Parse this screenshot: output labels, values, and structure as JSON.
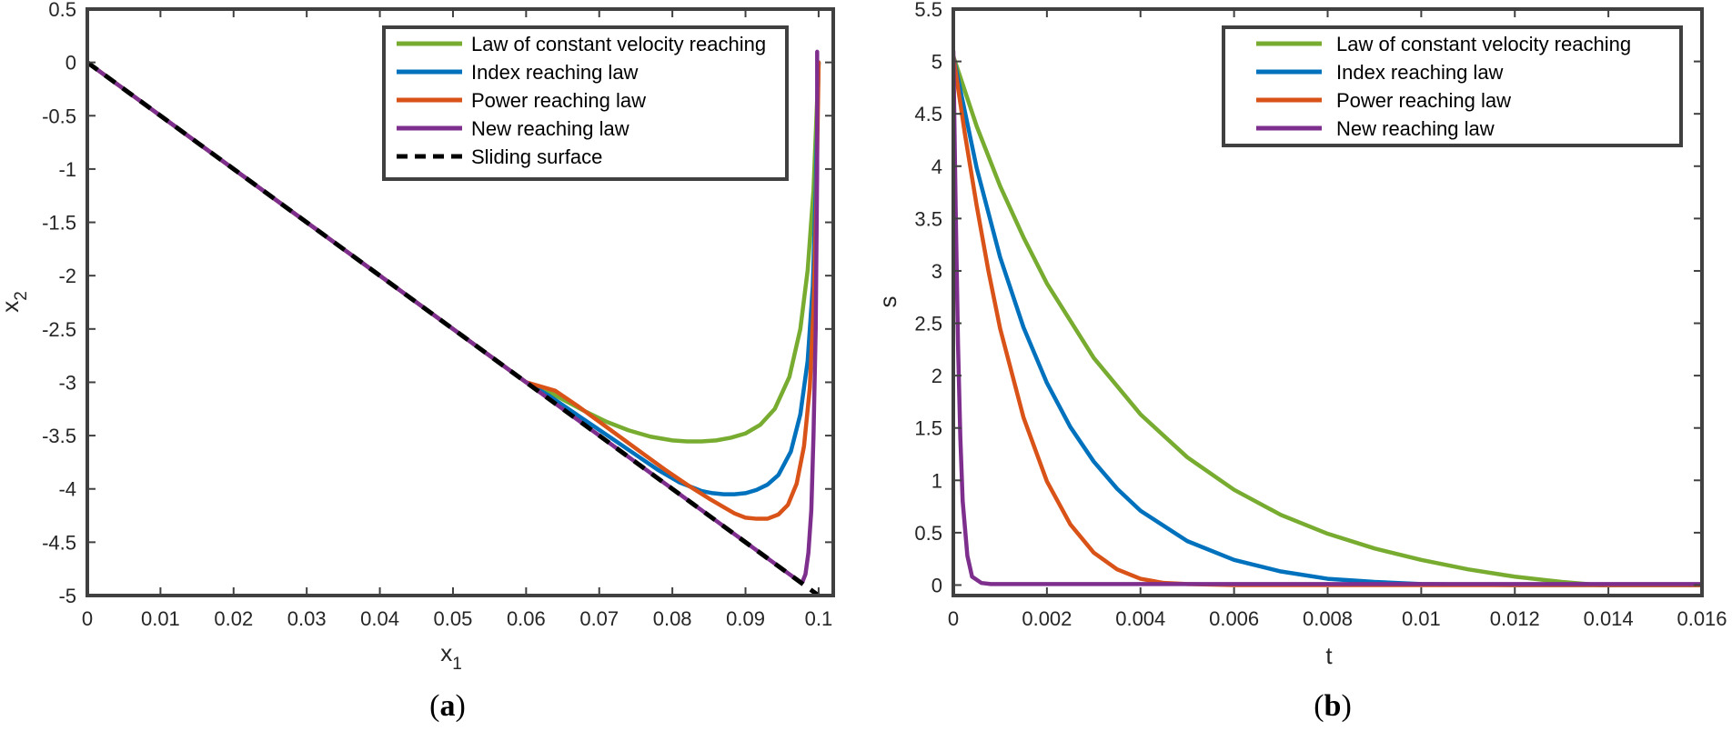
{
  "colors": {
    "green": "#77AC30",
    "blue": "#0072BD",
    "orange": "#D95319",
    "purple": "#7E2F8E",
    "black": "#000000",
    "axis": "#404040"
  },
  "chart_data": [
    {
      "type": "line",
      "caption_open": "(",
      "caption": "a",
      "caption_close": ")",
      "title": "",
      "xlabel": "x",
      "xlabel_sub": "1",
      "ylabel": "x",
      "ylabel_sub": "2",
      "xlim": [
        0,
        0.102
      ],
      "ylim": [
        -5,
        0.5
      ],
      "xticks": [
        0,
        0.01,
        0.02,
        0.03,
        0.04,
        0.05,
        0.06,
        0.07,
        0.08,
        0.09,
        0.1
      ],
      "xtick_labels": [
        "0",
        "0.01",
        "0.02",
        "0.03",
        "0.04",
        "0.05",
        "0.06",
        "0.07",
        "0.08",
        "0.09",
        "0.1"
      ],
      "yticks": [
        0.5,
        0,
        -0.5,
        -1,
        -1.5,
        -2,
        -2.5,
        -3,
        -3.5,
        -4,
        -4.5,
        -5
      ],
      "ytick_labels": [
        "0.5",
        "0",
        "-0.5",
        "-1",
        "-1.5",
        "-2",
        "-2.5",
        "-3",
        "-3.5",
        "-4",
        "-4.5",
        "-5"
      ],
      "grid": false,
      "legend_position": "top-right",
      "series": [
        {
          "name": "Law of constant velocity reaching",
          "color": "green",
          "x": [
            0.1,
            0.0993,
            0.0985,
            0.0975,
            0.096,
            0.094,
            0.092,
            0.09,
            0.088,
            0.086,
            0.084,
            0.082,
            0.08,
            0.077,
            0.074,
            0.071,
            0.068,
            0.065,
            0.062,
            0.06,
            0.05,
            0.04,
            0.03,
            0.02,
            0.01,
            0
          ],
          "y": [
            0,
            -1.2,
            -1.95,
            -2.5,
            -2.95,
            -3.25,
            -3.4,
            -3.48,
            -3.52,
            -3.545,
            -3.555,
            -3.555,
            -3.545,
            -3.51,
            -3.45,
            -3.37,
            -3.27,
            -3.16,
            -3.05,
            -3.0,
            -2.5,
            -2.0,
            -1.5,
            -1.0,
            -0.5,
            0
          ]
        },
        {
          "name": "Index reaching law",
          "color": "blue",
          "x": [
            0.1,
            0.0996,
            0.0992,
            0.0985,
            0.0975,
            0.0962,
            0.0945,
            0.093,
            0.0915,
            0.09,
            0.0885,
            0.087,
            0.0855,
            0.084,
            0.081,
            0.078,
            0.075,
            0.072,
            0.069,
            0.066,
            0.063,
            0.06,
            0.05,
            0.04,
            0.03,
            0.02,
            0.01,
            0
          ],
          "y": [
            0,
            -1.2,
            -2.1,
            -2.8,
            -3.3,
            -3.65,
            -3.87,
            -3.96,
            -4.01,
            -4.04,
            -4.05,
            -4.05,
            -4.04,
            -4.02,
            -3.94,
            -3.82,
            -3.68,
            -3.54,
            -3.4,
            -3.26,
            -3.12,
            -3.0,
            -2.5,
            -2.0,
            -1.5,
            -1.0,
            -0.5,
            0
          ]
        },
        {
          "name": "Power reaching law",
          "color": "orange",
          "x": [
            0.1,
            0.0997,
            0.0993,
            0.0988,
            0.098,
            0.097,
            0.0958,
            0.0945,
            0.093,
            0.0915,
            0.09,
            0.0885,
            0.087,
            0.085,
            0.082,
            0.079,
            0.076,
            0.073,
            0.07,
            0.067,
            0.064,
            0.06,
            0.05,
            0.04,
            0.03,
            0.02,
            0.01,
            0
          ],
          "y": [
            0,
            -1.3,
            -2.3,
            -3.05,
            -3.6,
            -3.95,
            -4.15,
            -4.24,
            -4.28,
            -4.28,
            -4.27,
            -4.23,
            -4.17,
            -4.09,
            -3.96,
            -3.82,
            -3.67,
            -3.52,
            -3.37,
            -3.22,
            -3.08,
            -3.0,
            -2.5,
            -2.0,
            -1.5,
            -1.0,
            -0.5,
            0
          ]
        },
        {
          "name": "New reaching law",
          "color": "purple",
          "x": [
            0.0998,
            0.0998,
            0.0996,
            0.0993,
            0.099,
            0.0986,
            0.0982,
            0.0978,
            0.0974,
            0.095,
            0.09,
            0.08,
            0.07,
            0.06,
            0.05,
            0.04,
            0.03,
            0.02,
            0.01,
            0
          ],
          "y": [
            0.1,
            -1.0,
            -2.5,
            -3.5,
            -4.2,
            -4.6,
            -4.8,
            -4.87,
            -4.87,
            -4.75,
            -4.5,
            -4.0,
            -3.5,
            -3.0,
            -2.5,
            -2.0,
            -1.5,
            -1.0,
            -0.5,
            0
          ]
        },
        {
          "name": "Sliding surface",
          "color": "black",
          "dashed": true,
          "x": [
            0,
            0.1
          ],
          "y": [
            0,
            -5
          ]
        }
      ]
    },
    {
      "type": "line",
      "caption_open": "(",
      "caption": "b",
      "caption_close": ")",
      "title": "",
      "xlabel": "t",
      "ylabel": "s",
      "xlim": [
        0,
        0.016
      ],
      "ylim": [
        -0.1,
        5.5
      ],
      "xticks": [
        0,
        0.002,
        0.004,
        0.006,
        0.008,
        0.01,
        0.012,
        0.014,
        0.016
      ],
      "xtick_labels": [
        "0",
        "0.002",
        "0.004",
        "0.006",
        "0.008",
        "0.01",
        "0.012",
        "0.014",
        "0.016"
      ],
      "yticks": [
        5.5,
        5,
        4.5,
        4,
        3.5,
        3,
        2.5,
        2,
        1.5,
        1,
        0.5,
        0
      ],
      "ytick_labels": [
        "5.5",
        "5",
        "4.5",
        "4",
        "3.5",
        "3",
        "2.5",
        "2",
        "1.5",
        "1",
        "0.5",
        "0"
      ],
      "grid": false,
      "legend_position": "top-right",
      "series": [
        {
          "name": "Law of constant velocity reaching",
          "color": "green",
          "x": [
            0,
            0.0005,
            0.001,
            0.0015,
            0.002,
            0.003,
            0.004,
            0.005,
            0.006,
            0.007,
            0.008,
            0.009,
            0.01,
            0.011,
            0.012,
            0.013,
            0.0138,
            0.015,
            0.016
          ],
          "y": [
            5.05,
            4.38,
            3.81,
            3.32,
            2.88,
            2.17,
            1.63,
            1.22,
            0.91,
            0.67,
            0.49,
            0.35,
            0.24,
            0.15,
            0.08,
            0.03,
            0,
            0,
            0
          ]
        },
        {
          "name": "Index reaching law",
          "color": "blue",
          "x": [
            0,
            0.0005,
            0.001,
            0.0015,
            0.002,
            0.0025,
            0.003,
            0.0035,
            0.004,
            0.005,
            0.006,
            0.007,
            0.008,
            0.009,
            0.01,
            0.012,
            0.014,
            0.016
          ],
          "y": [
            5.05,
            3.98,
            3.13,
            2.46,
            1.93,
            1.51,
            1.18,
            0.92,
            0.71,
            0.42,
            0.24,
            0.13,
            0.06,
            0.03,
            0.01,
            0,
            0,
            0
          ]
        },
        {
          "name": "Power reaching law",
          "color": "orange",
          "x": [
            0,
            0.00025,
            0.0005,
            0.00075,
            0.001,
            0.0015,
            0.002,
            0.0025,
            0.003,
            0.0035,
            0.004,
            0.0045,
            0.005,
            0.006,
            0.008,
            0.01,
            0.012,
            0.014,
            0.016
          ],
          "y": [
            5.05,
            4.3,
            3.62,
            3.0,
            2.45,
            1.6,
            0.99,
            0.58,
            0.31,
            0.15,
            0.06,
            0.02,
            0.01,
            0,
            0,
            0,
            0,
            0,
            0
          ]
        },
        {
          "name": "New reaching law",
          "color": "purple",
          "x": [
            0,
            5e-05,
            0.0001,
            0.00015,
            0.0002,
            0.0003,
            0.0004,
            0.0006,
            0.0008,
            0.001,
            0.002,
            0.004,
            0.006,
            0.008,
            0.01,
            0.012,
            0.014,
            0.016
          ],
          "y": [
            5.1,
            3.6,
            2.3,
            1.4,
            0.8,
            0.28,
            0.08,
            0.02,
            0.01,
            0.01,
            0.01,
            0.01,
            0.01,
            0.01,
            0.01,
            0.01,
            0.01,
            0.01
          ]
        }
      ]
    }
  ]
}
